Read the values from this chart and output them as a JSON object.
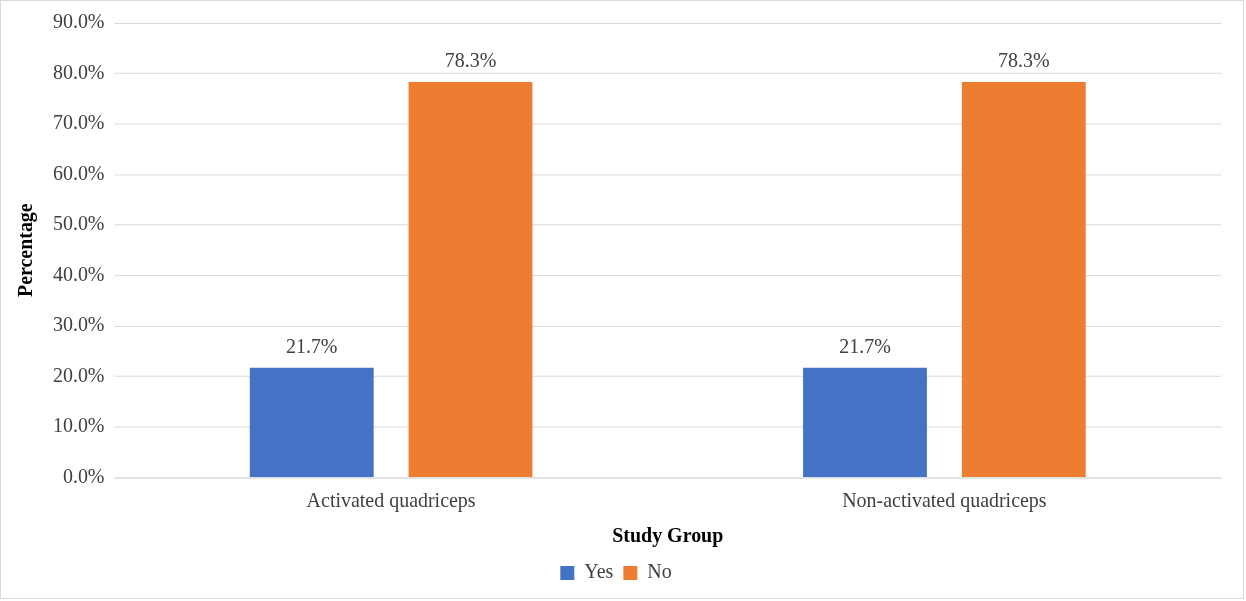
{
  "chart_data": {
    "type": "bar",
    "xlabel": "Study Group",
    "ylabel": "Percentage",
    "categories": [
      "Activated quadriceps",
      "Non-activated quadriceps"
    ],
    "series": [
      {
        "name": "Yes",
        "color": "#4472c4",
        "values": [
          21.7,
          21.7
        ],
        "value_labels": [
          "21.7%",
          "21.7%"
        ]
      },
      {
        "name": "No",
        "color": "#ed7d31",
        "values": [
          78.3,
          78.3
        ],
        "value_labels": [
          "78.3%",
          "78.3%"
        ]
      }
    ],
    "ylim": [
      0,
      90
    ],
    "yticks": [
      {
        "value": 0,
        "label": "0.0%"
      },
      {
        "value": 10,
        "label": "10.0%"
      },
      {
        "value": 20,
        "label": "20.0%"
      },
      {
        "value": 30,
        "label": "30.0%"
      },
      {
        "value": 40,
        "label": "40.0%"
      },
      {
        "value": 50,
        "label": "50.0%"
      },
      {
        "value": 60,
        "label": "60.0%"
      },
      {
        "value": 70,
        "label": "70.0%"
      },
      {
        "value": 80,
        "label": "80.0%"
      },
      {
        "value": 90,
        "label": "90.0%"
      }
    ],
    "grid": "y",
    "legend": "bottom"
  }
}
